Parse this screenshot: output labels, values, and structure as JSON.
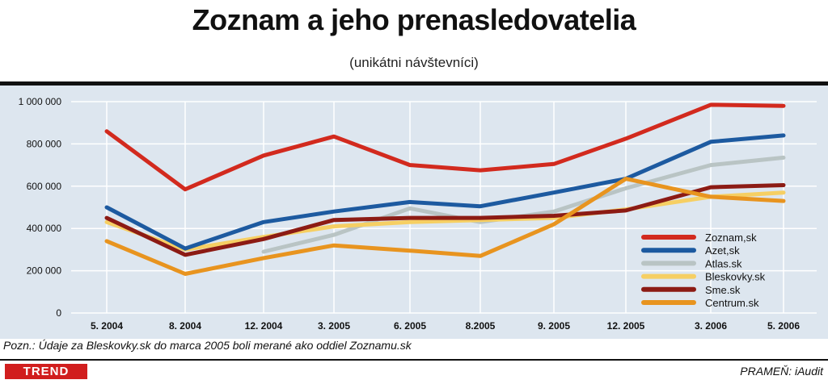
{
  "chart_data": {
    "type": "line",
    "title": "Zoznam a jeho prenasledovatelia",
    "subtitle": "(unikátni návštevníci)",
    "xlabel": "",
    "ylabel": "",
    "categories": [
      "5. 2004",
      "8. 2004",
      "12. 2004",
      "3. 2005",
      "6. 2005",
      "8.2005",
      "9. 2005",
      "12. 2005",
      "3. 2006",
      "5. 2006"
    ],
    "yticks": [
      "0",
      "200 000",
      "400 000",
      "600 000",
      "800 000",
      "1 000 000"
    ],
    "ylim": [
      0,
      1000000
    ],
    "grid": true,
    "legend_position": "bottom-right",
    "series": [
      {
        "name": "Zoznam,sk",
        "color": "#d22a1e",
        "values": [
          860000,
          585000,
          745000,
          835000,
          700000,
          675000,
          705000,
          825000,
          985000,
          980000
        ]
      },
      {
        "name": "Azet,sk",
        "color": "#1d5aa0",
        "values": [
          500000,
          305000,
          430000,
          480000,
          525000,
          505000,
          570000,
          635000,
          810000,
          840000
        ]
      },
      {
        "name": "Atlas.sk",
        "color": "#b9c4c4",
        "values": [
          null,
          null,
          290000,
          370000,
          495000,
          430000,
          480000,
          590000,
          700000,
          735000
        ]
      },
      {
        "name": "Bleskovky.sk",
        "color": "#f6cf63",
        "values": [
          430000,
          300000,
          360000,
          410000,
          430000,
          440000,
          450000,
          490000,
          550000,
          570000
        ]
      },
      {
        "name": "Sme.sk",
        "color": "#8c1b14",
        "values": [
          450000,
          275000,
          350000,
          440000,
          450000,
          450000,
          460000,
          485000,
          595000,
          605000
        ]
      },
      {
        "name": "Centrum.sk",
        "color": "#e8941f",
        "values": [
          340000,
          185000,
          260000,
          320000,
          295000,
          270000,
          420000,
          635000,
          550000,
          530000
        ]
      }
    ]
  },
  "footer": {
    "note": "Pozn.: Údaje za Bleskovky.sk do marca 2005 boli merané ako oddiel Zoznamu.sk",
    "brand": "TREND",
    "source": "PRAMEŇ: iAudit"
  }
}
